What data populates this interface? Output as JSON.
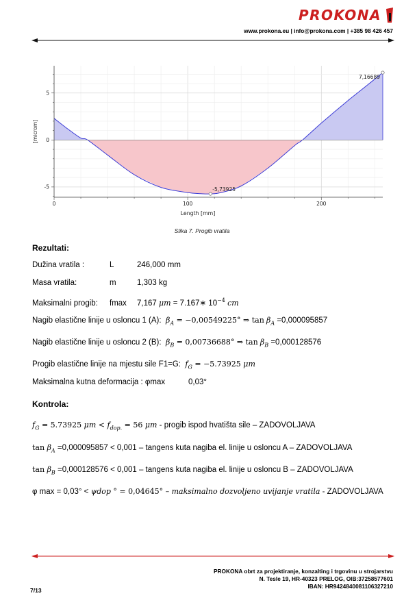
{
  "header": {
    "logo_text": "PROKONA",
    "contact": "www.prokona.eu | info@prokona.com | +385 98 426 457"
  },
  "figure": {
    "caption": "Slika 7. Progib vratila"
  },
  "chart_data": {
    "type": "area",
    "xlabel": "Length [mm]",
    "ylabel": "[microm]",
    "xlim": [
      0,
      246
    ],
    "ylim": [
      -6.1,
      7.9
    ],
    "x_ticks": [
      "0",
      "100",
      "200"
    ],
    "y_ticks": [
      "5",
      "0",
      "-5"
    ],
    "grid": true,
    "series": [
      {
        "x": [
          0,
          10,
          20,
          25,
          40,
          60,
          80,
          100,
          110,
          117,
          125,
          140,
          160,
          180,
          186,
          200,
          220,
          235,
          246
        ],
        "values": [
          2.3,
          1.2,
          0.2,
          0.0,
          -1.6,
          -3.7,
          -5.05,
          -5.6,
          -5.72,
          -5.74,
          -5.6,
          -4.9,
          -3.0,
          -0.6,
          0.0,
          1.8,
          4.2,
          5.9,
          7.17
        ]
      }
    ],
    "annotations": [
      {
        "x": 117,
        "y": -5.73925,
        "text": "-5,73925"
      },
      {
        "x": 246,
        "y": 7.16689,
        "text": "7,16689"
      }
    ],
    "colors": {
      "positive_fill": "#c9c9f2",
      "negative_fill": "#f7c6cb",
      "line": "#3a3ad6"
    }
  },
  "results": {
    "heading": "Rezultati:",
    "length": {
      "label": "Dužina vratila :",
      "symbol": "L",
      "value": "246,000 mm"
    },
    "mass": {
      "label": "Masa vratila:",
      "symbol": "m",
      "value": "1,303 kg"
    },
    "max_deflection": {
      "label": "Maksimalni progib:",
      "symbol": "fmax",
      "value": "7,167",
      "unit": "μm",
      "eq": " = 7.167∗ 10",
      "exp": "−4",
      "unit2": "cm"
    },
    "slope_a": {
      "label": "Nagib  elastične linije u osloncu 1 (A):",
      "beta": "β",
      "sub": "A",
      "eq": " = −0,00549225° ⇒ tan",
      "value": " =0,000095857"
    },
    "slope_b": {
      "label": "Nagib  elastične linije u osloncu 2 (B):",
      "beta": "β",
      "sub": "B",
      "eq": " = 0,00736688° ⇒ tan",
      "value": " =0,000128576"
    },
    "deflection_f": {
      "label": "Progib  elastične linije na mjestu sile F1=G:",
      "f": "f",
      "sub": "G",
      "value": " = −5.73925 ",
      "unit": "μm"
    },
    "torsion": {
      "label": "Maksimalna kutna deformacija : φmax",
      "value": "0,03°"
    }
  },
  "control": {
    "heading": "Kontrola:",
    "row1": {
      "f": "f",
      "sub": "G",
      "a": " = 5.73925 ",
      "unit": "μm",
      "b": "  <  ",
      "f2": "f",
      "sub2": "dop.",
      "c": " = 56 ",
      "unit2": "μm",
      "text": " - progib ispod hvatišta sile – ZADOVOLJAVA"
    },
    "row2": {
      "tan": "tan ",
      "beta": "β",
      "sub": "A",
      "value": " =0,000095857  < 0,001",
      "text": " – tangens kuta nagiba el. linije u osloncu A – ZADOVOLJAVA"
    },
    "row3": {
      "tan": "tan ",
      "beta": "β",
      "sub": "B",
      "value": " =0,000128576 < 0,001",
      "text": " – tangens kuta nagiba el. linije u osloncu B – ZADOVOLJAVA"
    },
    "row4": {
      "a": "φ max = 0,03° < ",
      "psi": "ψdop",
      "b": " ° =  0,04645° – ",
      "italic": "maksimalno dozvoljeno uvijanje vratila",
      "text": "  - ZADOVOLJAVA"
    }
  },
  "footer": {
    "line1": "PROKONA obrt za projektiranje, konzalting i trgovinu u strojarstvu",
    "line2": "N. Tesle 19, HR-40323 PRELOG, OIB:37258577601",
    "line3": "IBAN: HR9424840081106327210",
    "page": "7/13"
  }
}
